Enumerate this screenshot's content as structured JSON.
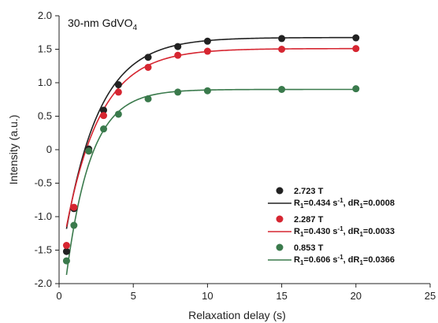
{
  "chart_data": {
    "type": "scatter",
    "title": "",
    "annotation": {
      "prefix": "30-nm GdVO",
      "sub": "4"
    },
    "xlabel": "Relaxation delay (s)",
    "ylabel": "Intensity (a.u.)",
    "xlim": [
      0,
      25
    ],
    "ylim": [
      -2.0,
      2.0
    ],
    "xticks": [
      "0",
      "5",
      "10",
      "15",
      "20",
      "25"
    ],
    "yticks": [
      "-2.0",
      "-1.5",
      "-1.0",
      "-0.5",
      "0",
      "0.5",
      "1.0",
      "1.5",
      "2.0"
    ],
    "grid": false,
    "legend_position": "bottom-right",
    "series": [
      {
        "name": "2.723 T",
        "color": "#222222",
        "fit_color": "#222222",
        "fit_label": {
          "r": "R",
          "sub1": "1",
          "mid": "=0.434 s",
          "sup": "-1",
          "dr": ", dR",
          "sub2": "1",
          "tail": "=0.0008"
        },
        "x": [
          0.5,
          1,
          2,
          3,
          4,
          6,
          8,
          10,
          15,
          20
        ],
        "y": [
          -1.52,
          -0.88,
          0.01,
          0.59,
          0.97,
          1.38,
          1.54,
          1.62,
          1.66,
          1.67
        ],
        "fit": {
          "a": 1.675,
          "b": 3.55,
          "r": 0.434
        }
      },
      {
        "name": "2.287 T",
        "color": "#d62631",
        "fit_color": "#d62631",
        "fit_label": {
          "r": "R",
          "sub1": "1",
          "mid": "=0.430 s",
          "sup": "-1",
          "dr": ", dR",
          "sub2": "1",
          "tail": "=0.0033"
        },
        "x": [
          0.5,
          1,
          2,
          3,
          4,
          6,
          8,
          10,
          15,
          20
        ],
        "y": [
          -1.43,
          -0.86,
          -0.02,
          0.51,
          0.86,
          1.23,
          1.41,
          1.47,
          1.5,
          1.51
        ],
        "fit": {
          "a": 1.51,
          "b": 3.3,
          "r": 0.43
        }
      },
      {
        "name": "0.853 T",
        "color": "#3a7a4c",
        "fit_color": "#3a7a4c",
        "fit_label": {
          "r": "R",
          "sub1": "1",
          "mid": "=0.606 s",
          "sup": "-1",
          "dr": ", dR",
          "sub2": "1",
          "tail": "=0.0366"
        },
        "x": [
          0.5,
          1,
          2,
          3,
          4,
          6,
          8,
          10,
          15,
          20
        ],
        "y": [
          -1.66,
          -1.13,
          -0.02,
          0.31,
          0.53,
          0.76,
          0.86,
          0.88,
          0.9,
          0.91
        ],
        "fit": {
          "a": 0.9,
          "b": 3.75,
          "r": 0.606
        }
      }
    ]
  }
}
